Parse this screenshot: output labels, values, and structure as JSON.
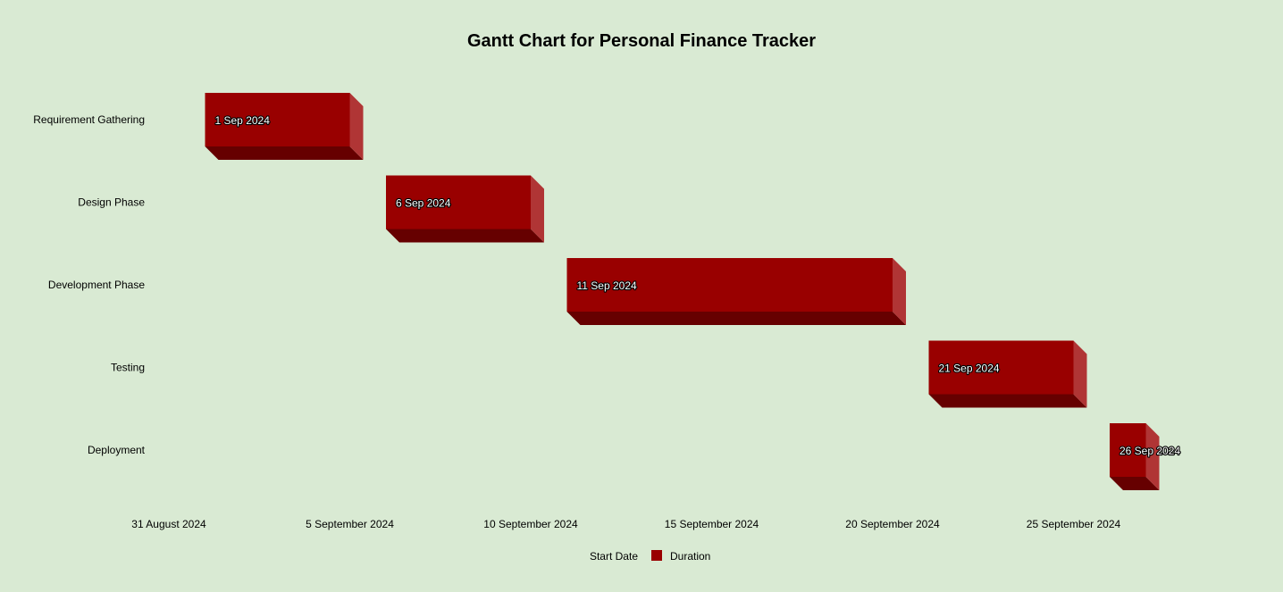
{
  "chart_data": {
    "type": "bar",
    "orientation": "horizontal",
    "stacked": true,
    "title": "Gantt Chart for Personal Finance Tracker",
    "categories": [
      "Requirement Gathering",
      "Design Phase",
      "Development Phase",
      "Testing",
      "Deployment"
    ],
    "series": [
      {
        "name": "Start Date",
        "visible": false,
        "values": [
          "2024-09-01",
          "2024-09-06",
          "2024-09-11",
          "2024-09-21",
          "2024-09-26"
        ]
      },
      {
        "name": "Duration",
        "color": "#990000",
        "values": [
          4,
          4,
          9,
          4,
          1
        ]
      }
    ],
    "data_labels": [
      "1 Sep 2024",
      "6 Sep 2024",
      "11 Sep 2024",
      "21 Sep 2024",
      "26 Sep 2024"
    ],
    "x_ticks": [
      {
        "value": "2024-08-31",
        "label": "31 August 2024"
      },
      {
        "value": "2024-09-05",
        "label": "5 September 2024"
      },
      {
        "value": "2024-09-10",
        "label": "10 September 2024"
      },
      {
        "value": "2024-09-15",
        "label": "15 September 2024"
      },
      {
        "value": "2024-09-20",
        "label": "20 September 2024"
      },
      {
        "value": "2024-09-25",
        "label": "25 September 2024"
      }
    ],
    "xlim": [
      "2024-08-31",
      "2024-09-27"
    ],
    "grid": false,
    "legend_position": "bottom",
    "background_color": "#d9ead3",
    "bar_style": "3d"
  }
}
